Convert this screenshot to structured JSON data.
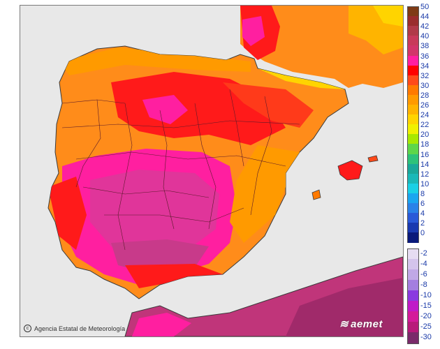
{
  "map": {
    "credit": "Agencia Estatal de Meteorología",
    "brand_logo_text": "aemet",
    "colors": {
      "sea": "#e6e6e6",
      "border_lines": "#5a1a2a",
      "coast": "#3a3a3a",
      "africa_fill": "#c0357a",
      "france_fill": "#ff8c1a"
    }
  },
  "legend": {
    "positive_scale": [
      {
        "label": "50",
        "color": "#7f3b16"
      },
      {
        "label": "44",
        "color": "#9a2d2d"
      },
      {
        "label": "42",
        "color": "#b03a48"
      },
      {
        "label": "40",
        "color": "#c83a5a"
      },
      {
        "label": "38",
        "color": "#d2356a"
      },
      {
        "label": "36",
        "color": "#ff1fa0"
      },
      {
        "label": "34",
        "color": "#ff0000"
      },
      {
        "label": "32",
        "color": "#ff4a1a"
      },
      {
        "label": "30",
        "color": "#ff7a00"
      },
      {
        "label": "28",
        "color": "#ff9a00"
      },
      {
        "label": "26",
        "color": "#ffb400"
      },
      {
        "label": "24",
        "color": "#ffd400"
      },
      {
        "label": "22",
        "color": "#f0f000"
      },
      {
        "label": "20",
        "color": "#a8e800"
      },
      {
        "label": "18",
        "color": "#5ed64a"
      },
      {
        "label": "16",
        "color": "#2ec27a"
      },
      {
        "label": "14",
        "color": "#1aa89a"
      },
      {
        "label": "12",
        "color": "#1ab8b8"
      },
      {
        "label": "10",
        "color": "#1ad0e6"
      },
      {
        "label": "8",
        "color": "#1aa6f0"
      },
      {
        "label": "6",
        "color": "#2a82e8"
      },
      {
        "label": "4",
        "color": "#2a5ad8"
      },
      {
        "label": "2",
        "color": "#1a3ab0"
      },
      {
        "label": "0",
        "color": "#0a1a7a"
      }
    ],
    "negative_scale": [
      {
        "label": "-2",
        "color": "#e6dcf2"
      },
      {
        "label": "-4",
        "color": "#d4c4ec"
      },
      {
        "label": "-6",
        "color": "#c0a8e6"
      },
      {
        "label": "-8",
        "color": "#a47ee0"
      },
      {
        "label": "-10",
        "color": "#8a3ae0"
      },
      {
        "label": "-15",
        "color": "#c01ac8"
      },
      {
        "label": "-20",
        "color": "#d41a9a"
      },
      {
        "label": "-25",
        "color": "#b81a7a"
      },
      {
        "label": "-30",
        "color": "#7a2a6a"
      }
    ]
  }
}
